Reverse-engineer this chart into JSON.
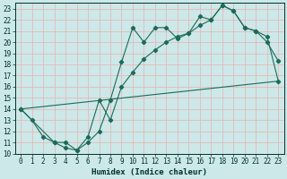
{
  "xlabel": "Humidex (Indice chaleur)",
  "bg_color": "#cde8e8",
  "grid_color": "#e8b0b0",
  "line_color": "#1a6b5a",
  "xlim": [
    -0.5,
    23.5
  ],
  "ylim": [
    10,
    23.5
  ],
  "xticks": [
    0,
    1,
    2,
    3,
    4,
    5,
    6,
    7,
    8,
    9,
    10,
    11,
    12,
    13,
    14,
    15,
    16,
    17,
    18,
    19,
    20,
    21,
    22,
    23
  ],
  "yticks": [
    10,
    11,
    12,
    13,
    14,
    15,
    16,
    17,
    18,
    19,
    20,
    21,
    22,
    23
  ],
  "line1_x": [
    0,
    1,
    2,
    3,
    4,
    5,
    6,
    7,
    8,
    9,
    10,
    11,
    12,
    13,
    14,
    15,
    16,
    17,
    18,
    19,
    20,
    21,
    22,
    23
  ],
  "line1_y": [
    14.0,
    13.0,
    11.5,
    11.0,
    11.0,
    10.3,
    11.0,
    12.0,
    14.8,
    18.2,
    21.3,
    20.0,
    21.3,
    21.3,
    20.3,
    20.8,
    22.3,
    22.0,
    23.3,
    22.8,
    21.3,
    21.0,
    20.0,
    18.3
  ],
  "line2_x": [
    0,
    3,
    4,
    5,
    6,
    7,
    8,
    9,
    10,
    11,
    12,
    13,
    14,
    15,
    16,
    17,
    18,
    19,
    20,
    21,
    22,
    23
  ],
  "line2_y": [
    14.0,
    11.0,
    10.5,
    10.3,
    11.5,
    14.8,
    13.0,
    16.0,
    17.3,
    18.5,
    19.3,
    20.0,
    20.5,
    20.8,
    21.5,
    22.0,
    23.3,
    22.8,
    21.3,
    21.0,
    20.5,
    16.5
  ],
  "line3_x": [
    0,
    23
  ],
  "line3_y": [
    14.0,
    16.5
  ]
}
